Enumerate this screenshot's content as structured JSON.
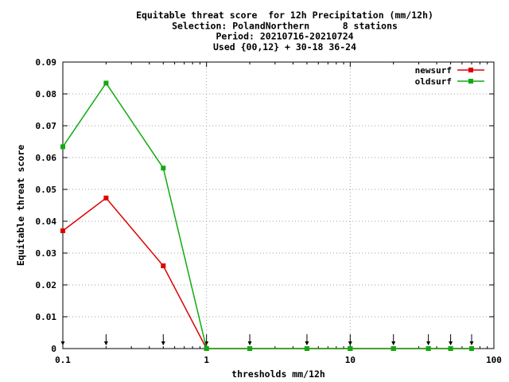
{
  "chart_data": {
    "type": "line",
    "title_lines": [
      "Equitable threat score  for 12h Precipitation (mm/12h)",
      "Selection: PolandNorthern      8 stations",
      "Period: 20210716-20210724",
      "Used {00,12} + 30-18 36-24"
    ],
    "xlabel": "thresholds mm/12h",
    "ylabel": "Equitable threat score",
    "x_scale": "log",
    "xlim": [
      0.1,
      100
    ],
    "ylim": [
      0,
      0.09
    ],
    "x_ticks": [
      0.1,
      1,
      10,
      100
    ],
    "x_tick_labels": [
      "0.1",
      "1",
      "10",
      "100"
    ],
    "y_ticks": [
      0,
      0.01,
      0.02,
      0.03,
      0.04,
      0.05,
      0.06,
      0.07,
      0.08,
      0.09
    ],
    "y_tick_labels": [
      "0",
      "0.01",
      "0.02",
      "0.03",
      "0.04",
      "0.05",
      "0.06",
      "0.07",
      "0.08",
      "0.09"
    ],
    "grid": true,
    "legend_position": "top-right",
    "threshold_markers": [
      0.1,
      0.2,
      0.5,
      1,
      2,
      5,
      10,
      20,
      35,
      50,
      70
    ],
    "series": [
      {
        "name": "newsurf",
        "color": "#dd0000",
        "x": [
          0.1,
          0.2,
          0.5,
          1,
          2,
          5,
          10,
          20,
          35,
          50,
          70
        ],
        "y": [
          0.037,
          0.0473,
          0.026,
          0,
          0,
          0,
          0,
          0,
          0,
          0,
          0
        ]
      },
      {
        "name": "oldsurf",
        "color": "#11aa11",
        "x": [
          0.1,
          0.2,
          0.5,
          1,
          2,
          5,
          10,
          20,
          35,
          50,
          70
        ],
        "y": [
          0.0634,
          0.0834,
          0.0567,
          0,
          0,
          0,
          0,
          0,
          0,
          0,
          0
        ]
      }
    ]
  }
}
